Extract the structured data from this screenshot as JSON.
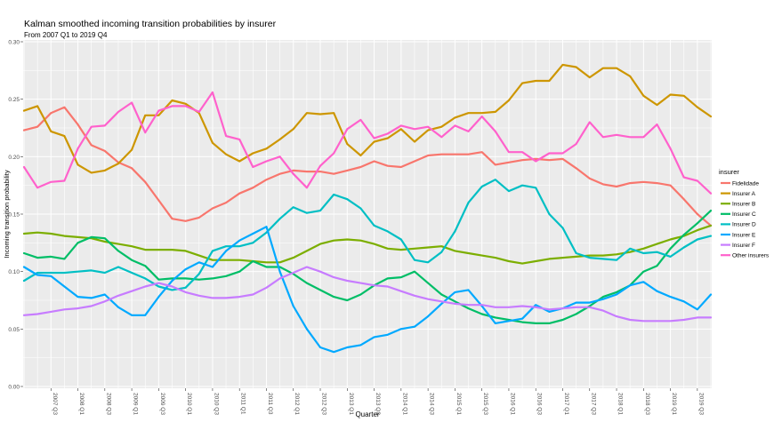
{
  "chart_data": {
    "type": "line",
    "title": "Kalman smoothed incoming transition probabilities by insurer",
    "subtitle": "From 2007 Q1 to 2019 Q4",
    "xlabel": "Quarter",
    "ylabel": "Incoming transition probability",
    "ylim": [
      0,
      0.3
    ],
    "yticks": [
      "0.00",
      "0.05",
      "0.10",
      "0.15",
      "0.20",
      "0.25",
      "0.30"
    ],
    "x_start": "2007 Q1",
    "x_end": "2019 Q4",
    "xtick_labels": [
      "2007 Q3",
      "2008 Q1",
      "2008 Q3",
      "2009 Q1",
      "2009 Q3",
      "2010 Q1",
      "2010 Q3",
      "2011 Q1",
      "2011 Q3",
      "2012 Q1",
      "2012 Q3",
      "2013 Q1",
      "2013 Q3",
      "2014 Q1",
      "2014 Q3",
      "2015 Q1",
      "2015 Q3",
      "2016 Q1",
      "2016 Q3",
      "2017 Q1",
      "2017 Q3",
      "2018 Q1",
      "2018 Q3",
      "2019 Q1",
      "2019 Q3"
    ],
    "grid": true,
    "legend": {
      "title": "insurer",
      "position": "right"
    },
    "series": [
      {
        "name": "Fidelidade",
        "color": "#F8766D",
        "values": [
          0.223,
          0.226,
          0.238,
          0.243,
          0.228,
          0.21,
          0.205,
          0.195,
          0.19,
          0.178,
          0.162,
          0.146,
          0.144,
          0.147,
          0.155,
          0.16,
          0.168,
          0.173,
          0.18,
          0.185,
          0.188,
          0.187,
          0.187,
          0.185,
          0.188,
          0.191,
          0.196,
          0.192,
          0.191,
          0.196,
          0.201,
          0.202,
          0.202,
          0.202,
          0.204,
          0.193,
          0.195,
          0.197,
          0.198,
          0.197,
          0.198,
          0.19,
          0.181,
          0.176,
          0.174,
          0.177,
          0.178,
          0.177,
          0.175,
          0.163,
          0.15,
          0.14
        ]
      },
      {
        "name": "Insurer A",
        "color": "#CD9600",
        "values": [
          0.24,
          0.244,
          0.222,
          0.218,
          0.193,
          0.186,
          0.188,
          0.194,
          0.206,
          0.236,
          0.236,
          0.249,
          0.246,
          0.238,
          0.212,
          0.202,
          0.196,
          0.203,
          0.207,
          0.215,
          0.224,
          0.238,
          0.237,
          0.238,
          0.211,
          0.201,
          0.213,
          0.216,
          0.224,
          0.213,
          0.223,
          0.226,
          0.234,
          0.238,
          0.238,
          0.239,
          0.249,
          0.264,
          0.266,
          0.266,
          0.28,
          0.278,
          0.269,
          0.277,
          0.277,
          0.27,
          0.253,
          0.245,
          0.254,
          0.253,
          0.243,
          0.235
        ]
      },
      {
        "name": "Insurer B",
        "color": "#7CAE00",
        "values": [
          0.133,
          0.134,
          0.133,
          0.131,
          0.13,
          0.129,
          0.126,
          0.124,
          0.122,
          0.119,
          0.119,
          0.119,
          0.118,
          0.114,
          0.11,
          0.11,
          0.11,
          0.109,
          0.108,
          0.108,
          0.112,
          0.118,
          0.124,
          0.127,
          0.128,
          0.127,
          0.124,
          0.12,
          0.119,
          0.12,
          0.121,
          0.122,
          0.118,
          0.116,
          0.114,
          0.112,
          0.109,
          0.107,
          0.109,
          0.111,
          0.112,
          0.113,
          0.114,
          0.114,
          0.115,
          0.117,
          0.12,
          0.124,
          0.128,
          0.131,
          0.136,
          0.14
        ]
      },
      {
        "name": "Insurer C",
        "color": "#00BE67",
        "values": [
          0.116,
          0.112,
          0.113,
          0.111,
          0.125,
          0.13,
          0.129,
          0.118,
          0.11,
          0.105,
          0.093,
          0.094,
          0.094,
          0.093,
          0.094,
          0.096,
          0.1,
          0.109,
          0.104,
          0.104,
          0.098,
          0.09,
          0.084,
          0.078,
          0.075,
          0.08,
          0.088,
          0.094,
          0.095,
          0.1,
          0.09,
          0.08,
          0.074,
          0.068,
          0.063,
          0.06,
          0.058,
          0.056,
          0.055,
          0.055,
          0.058,
          0.063,
          0.07,
          0.078,
          0.082,
          0.088,
          0.1,
          0.105,
          0.12,
          0.132,
          0.142,
          0.153
        ]
      },
      {
        "name": "Insurer D",
        "color": "#00BFC4",
        "values": [
          0.092,
          0.099,
          0.099,
          0.099,
          0.1,
          0.101,
          0.099,
          0.104,
          0.099,
          0.094,
          0.087,
          0.084,
          0.086,
          0.098,
          0.118,
          0.122,
          0.122,
          0.125,
          0.134,
          0.146,
          0.156,
          0.151,
          0.153,
          0.167,
          0.163,
          0.155,
          0.14,
          0.135,
          0.128,
          0.11,
          0.108,
          0.117,
          0.135,
          0.16,
          0.174,
          0.18,
          0.17,
          0.175,
          0.173,
          0.15,
          0.138,
          0.116,
          0.112,
          0.111,
          0.11,
          0.12,
          0.116,
          0.117,
          0.113,
          0.121,
          0.128,
          0.131
        ]
      },
      {
        "name": "Insurer E",
        "color": "#00A9FF",
        "values": [
          0.104,
          0.097,
          0.096,
          0.087,
          0.078,
          0.077,
          0.08,
          0.069,
          0.062,
          0.062,
          0.078,
          0.092,
          0.102,
          0.108,
          0.104,
          0.118,
          0.127,
          0.133,
          0.139,
          0.1,
          0.07,
          0.05,
          0.034,
          0.03,
          0.034,
          0.036,
          0.043,
          0.045,
          0.05,
          0.052,
          0.061,
          0.072,
          0.082,
          0.084,
          0.07,
          0.055,
          0.057,
          0.059,
          0.071,
          0.065,
          0.068,
          0.073,
          0.073,
          0.076,
          0.08,
          0.088,
          0.091,
          0.083,
          0.078,
          0.074,
          0.067,
          0.08
        ]
      },
      {
        "name": "Insurer F",
        "color": "#C77CFF",
        "values": [
          0.062,
          0.063,
          0.065,
          0.067,
          0.068,
          0.07,
          0.074,
          0.079,
          0.083,
          0.087,
          0.09,
          0.087,
          0.082,
          0.079,
          0.077,
          0.077,
          0.078,
          0.08,
          0.086,
          0.094,
          0.099,
          0.104,
          0.1,
          0.095,
          0.092,
          0.09,
          0.088,
          0.087,
          0.083,
          0.079,
          0.076,
          0.074,
          0.072,
          0.071,
          0.071,
          0.069,
          0.069,
          0.07,
          0.069,
          0.067,
          0.068,
          0.069,
          0.069,
          0.066,
          0.061,
          0.058,
          0.057,
          0.057,
          0.057,
          0.058,
          0.06,
          0.06
        ]
      },
      {
        "name": "Other insurers",
        "color": "#FF61CC",
        "values": [
          0.191,
          0.173,
          0.178,
          0.179,
          0.207,
          0.226,
          0.227,
          0.239,
          0.247,
          0.221,
          0.24,
          0.244,
          0.244,
          0.239,
          0.256,
          0.218,
          0.215,
          0.191,
          0.196,
          0.2,
          0.185,
          0.173,
          0.192,
          0.203,
          0.224,
          0.232,
          0.216,
          0.22,
          0.227,
          0.224,
          0.226,
          0.217,
          0.227,
          0.222,
          0.235,
          0.222,
          0.204,
          0.204,
          0.196,
          0.203,
          0.203,
          0.211,
          0.23,
          0.217,
          0.219,
          0.217,
          0.217,
          0.228,
          0.207,
          0.182,
          0.179,
          0.168
        ]
      }
    ]
  }
}
